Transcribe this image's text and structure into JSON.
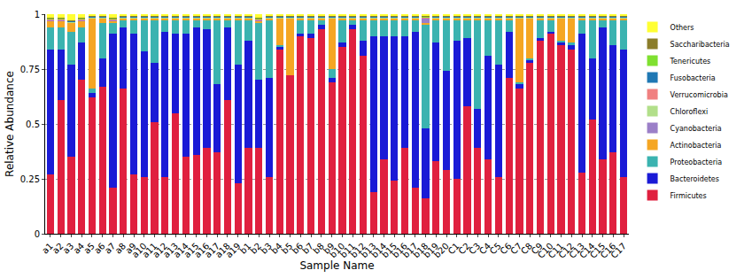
{
  "chart_data": {
    "type": "bar",
    "stacked": true,
    "x_label": "Sample Name",
    "y_label": "Relative Abundance",
    "categories": [
      "a1",
      "a2",
      "a3",
      "a4",
      "a5",
      "a6",
      "a7",
      "a8",
      "a9",
      "a10",
      "a11",
      "a12",
      "a13",
      "a14",
      "a15",
      "a16",
      "a17",
      "a18",
      "a19",
      "b1",
      "b2",
      "b3",
      "b4",
      "b5",
      "b6",
      "b7",
      "b8",
      "b9",
      "b10",
      "b11",
      "b12",
      "b13",
      "b14",
      "b15",
      "b16",
      "b17",
      "b18",
      "b19",
      "b20",
      "C1",
      "C2",
      "C3",
      "C4",
      "C5",
      "C6",
      "C7",
      "C8",
      "C9",
      "C10",
      "C11",
      "C12",
      "C13",
      "C14",
      "C15",
      "C16",
      "C17"
    ],
    "ylim": [
      0,
      1
    ],
    "yticks": [
      0,
      0.25,
      0.5,
      0.75,
      1
    ],
    "grid": true,
    "legend": "upper right",
    "series": [
      {
        "name": "Firmicutes",
        "color": "#e0203f",
        "values": [
          0.27,
          0.61,
          0.35,
          0.7,
          0.62,
          0.67,
          0.21,
          0.66,
          0.27,
          0.26,
          0.51,
          0.26,
          0.55,
          0.35,
          0.36,
          0.39,
          0.37,
          0.61,
          0.23,
          0.39,
          0.39,
          0.26,
          0.84,
          0.72,
          0.9,
          0.89,
          0.93,
          0.69,
          0.85,
          0.93,
          0.81,
          0.19,
          0.34,
          0.24,
          0.39,
          0.21,
          0.16,
          0.33,
          0.29,
          0.25,
          0.58,
          0.39,
          0.34,
          0.26,
          0.71,
          0.66,
          0.78,
          0.88,
          0.91,
          0.86,
          0.84,
          0.28,
          0.52,
          0.34,
          0.37,
          0.26
        ]
      },
      {
        "name": "Bacteroidetes",
        "color": "#1a1ad6",
        "values": [
          0.57,
          0.23,
          0.42,
          0.17,
          0.02,
          0.13,
          0.7,
          0.28,
          0.64,
          0.57,
          0.27,
          0.66,
          0.36,
          0.56,
          0.58,
          0.54,
          0.31,
          0.33,
          0.54,
          0.49,
          0.31,
          0.45,
          0.01,
          0.0,
          0.01,
          0.02,
          0.02,
          0.02,
          0.02,
          0.02,
          0.07,
          0.71,
          0.56,
          0.66,
          0.51,
          0.71,
          0.32,
          0.54,
          0.45,
          0.63,
          0.31,
          0.18,
          0.47,
          0.51,
          0.21,
          0.02,
          0.01,
          0.01,
          0.01,
          0.01,
          0.02,
          0.63,
          0.28,
          0.6,
          0.49,
          0.58
        ]
      },
      {
        "name": "Proteobacteria",
        "color": "#3bb3b0",
        "values": [
          0.1,
          0.1,
          0.15,
          0.07,
          0.02,
          0.16,
          0.05,
          0.03,
          0.06,
          0.14,
          0.19,
          0.05,
          0.06,
          0.06,
          0.03,
          0.04,
          0.29,
          0.03,
          0.2,
          0.09,
          0.26,
          0.26,
          0.01,
          0.0,
          0.06,
          0.06,
          0.02,
          0.04,
          0.1,
          0.02,
          0.09,
          0.07,
          0.07,
          0.07,
          0.07,
          0.05,
          0.47,
          0.1,
          0.23,
          0.09,
          0.08,
          0.4,
          0.16,
          0.2,
          0.05,
          0.01,
          0.01,
          0.08,
          0.05,
          0.01,
          0.01,
          0.06,
          0.17,
          0.03,
          0.11,
          0.13
        ]
      },
      {
        "name": "Actinobacteria",
        "color": "#f5a623",
        "values": [
          0.03,
          0.03,
          0.04,
          0.03,
          0.32,
          0.02,
          0.01,
          0.01,
          0.01,
          0.01,
          0.01,
          0.01,
          0.01,
          0.01,
          0.01,
          0.01,
          0.01,
          0.01,
          0.01,
          0.01,
          0.01,
          0.01,
          0.12,
          0.26,
          0.01,
          0.01,
          0.01,
          0.23,
          0.01,
          0.01,
          0.01,
          0.01,
          0.01,
          0.01,
          0.01,
          0.01,
          0.01,
          0.01,
          0.01,
          0.01,
          0.01,
          0.01,
          0.01,
          0.01,
          0.01,
          0.29,
          0.18,
          0.01,
          0.01,
          0.1,
          0.11,
          0.01,
          0.01,
          0.01,
          0.01,
          0.01
        ]
      },
      {
        "name": "Cyanobacteria",
        "color": "#9b7fc8",
        "values": [
          0.002,
          0.002,
          0.002,
          0.002,
          0.002,
          0.002,
          0.002,
          0.002,
          0.002,
          0.002,
          0.002,
          0.002,
          0.002,
          0.002,
          0.002,
          0.002,
          0.002,
          0.002,
          0.002,
          0.002,
          0.002,
          0.002,
          0.002,
          0.002,
          0.002,
          0.002,
          0.002,
          0.002,
          0.002,
          0.002,
          0.002,
          0.002,
          0.002,
          0.002,
          0.002,
          0.002,
          0.02,
          0.002,
          0.002,
          0.002,
          0.002,
          0.002,
          0.002,
          0.002,
          0.002,
          0.002,
          0.002,
          0.002,
          0.002,
          0.002,
          0.002,
          0.002,
          0.002,
          0.002,
          0.002,
          0.002
        ]
      },
      {
        "name": "Chloroflexi",
        "color": "#b2df8a",
        "values": [
          0.002,
          0.002,
          0.002,
          0.002,
          0.002,
          0.002,
          0.002,
          0.002,
          0.002,
          0.002,
          0.002,
          0.002,
          0.002,
          0.002,
          0.002,
          0.002,
          0.002,
          0.002,
          0.002,
          0.002,
          0.002,
          0.002,
          0.002,
          0.002,
          0.002,
          0.002,
          0.002,
          0.002,
          0.002,
          0.002,
          0.002,
          0.002,
          0.002,
          0.002,
          0.002,
          0.002,
          0.002,
          0.002,
          0.002,
          0.002,
          0.002,
          0.002,
          0.002,
          0.002,
          0.002,
          0.002,
          0.002,
          0.002,
          0.002,
          0.002,
          0.002,
          0.002,
          0.002,
          0.002,
          0.002,
          0.002
        ]
      },
      {
        "name": "Verrucomicrobia",
        "color": "#f08080",
        "values": [
          0.002,
          0.002,
          0.002,
          0.002,
          0.002,
          0.002,
          0.002,
          0.002,
          0.002,
          0.002,
          0.002,
          0.002,
          0.002,
          0.002,
          0.002,
          0.002,
          0.002,
          0.002,
          0.002,
          0.002,
          0.002,
          0.002,
          0.002,
          0.002,
          0.002,
          0.002,
          0.002,
          0.002,
          0.002,
          0.002,
          0.002,
          0.002,
          0.002,
          0.002,
          0.002,
          0.002,
          0.002,
          0.002,
          0.002,
          0.002,
          0.002,
          0.002,
          0.002,
          0.002,
          0.002,
          0.002,
          0.002,
          0.002,
          0.002,
          0.002,
          0.002,
          0.002,
          0.002,
          0.002,
          0.002,
          0.002
        ]
      },
      {
        "name": "Fusobacteria",
        "color": "#1f78b4",
        "values": [
          0.002,
          0.002,
          0.002,
          0.002,
          0.002,
          0.002,
          0.002,
          0.002,
          0.002,
          0.002,
          0.002,
          0.002,
          0.002,
          0.002,
          0.002,
          0.002,
          0.002,
          0.002,
          0.002,
          0.002,
          0.002,
          0.002,
          0.002,
          0.002,
          0.002,
          0.002,
          0.002,
          0.002,
          0.002,
          0.002,
          0.002,
          0.002,
          0.002,
          0.002,
          0.002,
          0.002,
          0.002,
          0.002,
          0.002,
          0.002,
          0.002,
          0.002,
          0.002,
          0.002,
          0.002,
          0.002,
          0.002,
          0.002,
          0.002,
          0.002,
          0.002,
          0.002,
          0.002,
          0.002,
          0.002,
          0.002
        ]
      },
      {
        "name": "Tenericutes",
        "color": "#7fe030",
        "values": [
          0.003,
          0.003,
          0.003,
          0.003,
          0.003,
          0.003,
          0.003,
          0.003,
          0.003,
          0.003,
          0.003,
          0.003,
          0.003,
          0.003,
          0.003,
          0.003,
          0.003,
          0.003,
          0.003,
          0.003,
          0.003,
          0.003,
          0.003,
          0.003,
          0.003,
          0.003,
          0.003,
          0.003,
          0.003,
          0.003,
          0.003,
          0.003,
          0.003,
          0.003,
          0.003,
          0.003,
          0.003,
          0.003,
          0.003,
          0.003,
          0.003,
          0.003,
          0.003,
          0.003,
          0.003,
          0.003,
          0.003,
          0.003,
          0.003,
          0.003,
          0.003,
          0.003,
          0.003,
          0.003,
          0.003,
          0.003
        ]
      },
      {
        "name": "Saccharibacteria",
        "color": "#8b7d2a",
        "values": [
          0.002,
          0.002,
          0.002,
          0.002,
          0.002,
          0.002,
          0.002,
          0.002,
          0.002,
          0.002,
          0.002,
          0.002,
          0.002,
          0.002,
          0.002,
          0.002,
          0.002,
          0.002,
          0.002,
          0.002,
          0.002,
          0.002,
          0.002,
          0.002,
          0.002,
          0.002,
          0.002,
          0.002,
          0.002,
          0.002,
          0.002,
          0.002,
          0.002,
          0.002,
          0.002,
          0.002,
          0.002,
          0.002,
          0.002,
          0.002,
          0.002,
          0.002,
          0.002,
          0.002,
          0.002,
          0.002,
          0.002,
          0.002,
          0.002,
          0.002,
          0.002,
          0.002,
          0.002,
          0.002,
          0.002,
          0.002
        ]
      },
      {
        "name": "Others",
        "color": "#ffff33",
        "values": [
          0.017,
          0.017,
          0.027,
          0.017,
          0.007,
          0.007,
          0.017,
          0.007,
          0.007,
          0.007,
          0.007,
          0.007,
          0.007,
          0.007,
          0.007,
          0.007,
          0.007,
          0.007,
          0.007,
          0.007,
          0.017,
          0.007,
          0.007,
          0.007,
          0.007,
          0.007,
          0.007,
          0.007,
          0.007,
          0.007,
          0.007,
          0.007,
          0.007,
          0.007,
          0.007,
          0.007,
          0.009,
          0.007,
          0.007,
          0.007,
          0.007,
          0.007,
          0.007,
          0.007,
          0.007,
          0.007,
          0.007,
          0.007,
          0.007,
          0.007,
          0.007,
          0.007,
          0.007,
          0.007,
          0.007,
          0.007
        ]
      }
    ]
  }
}
